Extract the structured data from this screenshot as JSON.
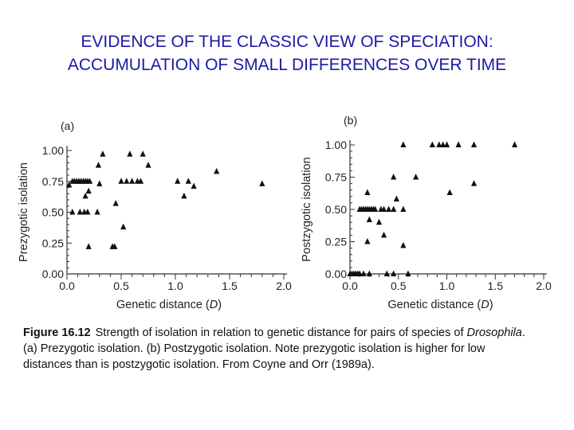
{
  "slide": {
    "title_line1": "EVIDENCE OF THE CLASSIC VIEW OF SPECIATION:",
    "title_line2": "ACCUMULATION OF SMALL DIFFERENCES OVER TIME",
    "title_color": "#1a1aa6"
  },
  "caption": {
    "figure_label": "Figure 16.12",
    "text_part1": "Strength of isolation in relation to genetic distance for pairs of species of",
    "genus": "Drosophila",
    "text_part2": ". (a) Prezygotic isolation. (b) Postzygotic isolation. Note prezygotic isolation is higher for low distances than is postzygotic isolation. From Coyne and Orr (1989a)."
  },
  "chart_data": [
    {
      "type": "scatter",
      "panel_label": "(a)",
      "xlabel": "Genetic distance (D)",
      "ylabel": "Prezygotic isolation",
      "xlim": [
        0,
        2.0
      ],
      "ylim": [
        0,
        1.0
      ],
      "xticks": [
        "0.0",
        "0.5",
        "1.0",
        "1.5",
        "2.0"
      ],
      "yticks": [
        "0.00",
        "0.25",
        "0.50",
        "0.75",
        "1.00"
      ],
      "marker": "triangle",
      "points": [
        [
          0.05,
          0.75
        ],
        [
          0.07,
          0.75
        ],
        [
          0.09,
          0.75
        ],
        [
          0.11,
          0.75
        ],
        [
          0.13,
          0.75
        ],
        [
          0.15,
          0.75
        ],
        [
          0.17,
          0.75
        ],
        [
          0.19,
          0.75
        ],
        [
          0.21,
          0.75
        ],
        [
          0.02,
          0.72
        ],
        [
          0.05,
          0.5
        ],
        [
          0.12,
          0.5
        ],
        [
          0.16,
          0.5
        ],
        [
          0.19,
          0.5
        ],
        [
          0.28,
          0.5
        ],
        [
          0.17,
          0.63
        ],
        [
          0.2,
          0.67
        ],
        [
          0.29,
          0.88
        ],
        [
          0.33,
          0.97
        ],
        [
          0.3,
          0.73
        ],
        [
          0.2,
          0.22
        ],
        [
          0.42,
          0.22
        ],
        [
          0.44,
          0.22
        ],
        [
          0.52,
          0.38
        ],
        [
          0.5,
          0.75
        ],
        [
          0.55,
          0.75
        ],
        [
          0.6,
          0.75
        ],
        [
          0.65,
          0.75
        ],
        [
          0.68,
          0.75
        ],
        [
          0.58,
          0.97
        ],
        [
          0.7,
          0.97
        ],
        [
          0.75,
          0.88
        ],
        [
          0.45,
          0.57
        ],
        [
          1.02,
          0.75
        ],
        [
          1.08,
          0.63
        ],
        [
          1.12,
          0.75
        ],
        [
          1.17,
          0.71
        ],
        [
          1.38,
          0.83
        ],
        [
          1.8,
          0.73
        ]
      ]
    },
    {
      "type": "scatter",
      "panel_label": "(b)",
      "xlabel": "Genetic distance (D)",
      "ylabel": "Postzygotic isolation",
      "xlim": [
        0,
        2.0
      ],
      "ylim": [
        0,
        1.0
      ],
      "xticks": [
        "0.0",
        "0.5",
        "1.0",
        "1.5",
        "2.0"
      ],
      "yticks": [
        "0.00",
        "0.25",
        "0.50",
        "0.75",
        "1.00"
      ],
      "marker": "triangle",
      "points": [
        [
          0.0,
          0.0
        ],
        [
          0.02,
          0.0
        ],
        [
          0.04,
          0.0
        ],
        [
          0.06,
          0.0
        ],
        [
          0.08,
          0.0
        ],
        [
          0.1,
          0.0
        ],
        [
          0.14,
          0.0
        ],
        [
          0.2,
          0.0
        ],
        [
          0.38,
          0.0
        ],
        [
          0.45,
          0.0
        ],
        [
          0.6,
          0.0
        ],
        [
          0.1,
          0.5
        ],
        [
          0.12,
          0.5
        ],
        [
          0.14,
          0.5
        ],
        [
          0.16,
          0.5
        ],
        [
          0.18,
          0.5
        ],
        [
          0.2,
          0.5
        ],
        [
          0.22,
          0.5
        ],
        [
          0.24,
          0.5
        ],
        [
          0.26,
          0.5
        ],
        [
          0.32,
          0.5
        ],
        [
          0.35,
          0.5
        ],
        [
          0.4,
          0.5
        ],
        [
          0.45,
          0.5
        ],
        [
          0.55,
          0.5
        ],
        [
          0.18,
          0.63
        ],
        [
          0.2,
          0.42
        ],
        [
          0.3,
          0.4
        ],
        [
          0.35,
          0.3
        ],
        [
          0.18,
          0.25
        ],
        [
          0.48,
          0.58
        ],
        [
          0.45,
          0.75
        ],
        [
          0.55,
          1.0
        ],
        [
          0.68,
          0.75
        ],
        [
          0.85,
          1.0
        ],
        [
          0.92,
          1.0
        ],
        [
          0.96,
          1.0
        ],
        [
          1.0,
          1.0
        ],
        [
          1.03,
          0.63
        ],
        [
          1.12,
          1.0
        ],
        [
          1.28,
          1.0
        ],
        [
          1.28,
          0.7
        ],
        [
          1.7,
          1.0
        ],
        [
          0.55,
          0.22
        ]
      ]
    }
  ]
}
